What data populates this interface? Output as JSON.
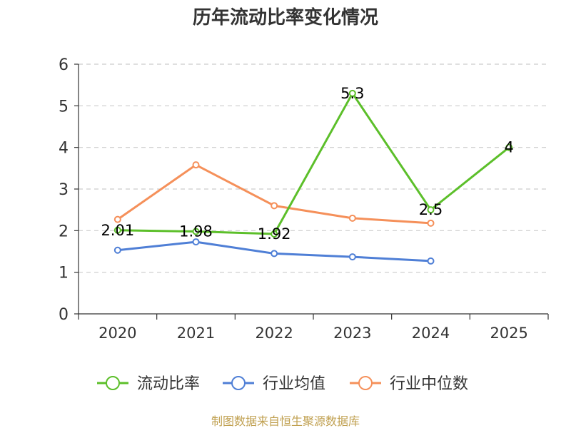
{
  "chart_data": {
    "type": "line",
    "title": "历年流动比率变化情况",
    "categories": [
      "2020",
      "2021",
      "2022",
      "2023",
      "2024",
      "2025"
    ],
    "ylim": [
      0,
      6
    ],
    "yticks": [
      0,
      1,
      2,
      3,
      4,
      5,
      6
    ],
    "grid": true,
    "legend_position": "bottom",
    "series": [
      {
        "name": "流动比率",
        "color": "#5cbf2a",
        "values": [
          2.01,
          1.98,
          1.92,
          5.3,
          2.5,
          4
        ],
        "labels": [
          "2.01",
          "1.98",
          "1.92",
          "5.3",
          "2.5",
          "4"
        ]
      },
      {
        "name": "行业均值",
        "color": "#4f7fd6",
        "values": [
          1.53,
          1.73,
          1.45,
          1.37,
          1.27,
          null
        ],
        "labels": null
      },
      {
        "name": "行业中位数",
        "color": "#f5905a",
        "values": [
          2.27,
          3.58,
          2.6,
          2.3,
          2.18,
          null
        ],
        "labels": null
      }
    ],
    "source": "制图数据来自恒生聚源数据库"
  }
}
